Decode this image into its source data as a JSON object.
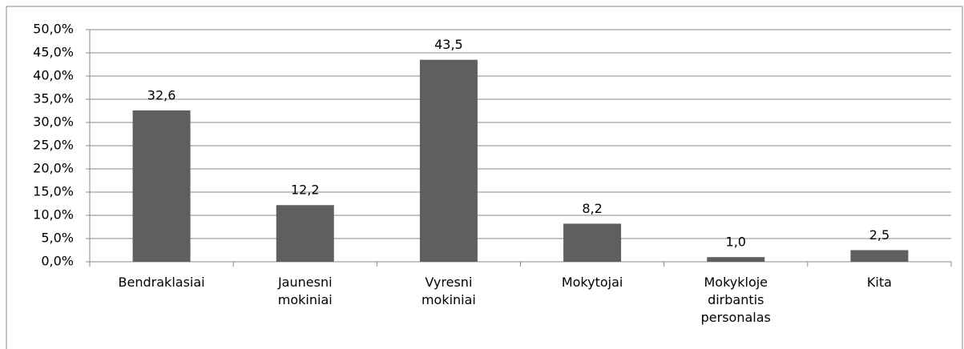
{
  "chart_data": {
    "type": "bar",
    "categories": [
      "Bendraklasiai",
      "Jaunesni\nmokiniai",
      "Vyresni\nmokiniai",
      "Mokytojai",
      "Mokykloje\ndirbantis\npersonalas",
      "Kita"
    ],
    "values": [
      32.6,
      12.2,
      43.5,
      8.2,
      1.0,
      2.5
    ],
    "value_labels": [
      "32,6",
      "12,2",
      "43,5",
      "8,2",
      "1,0",
      "2,5"
    ],
    "color": "#5f5f5f",
    "ylim": [
      0,
      50
    ],
    "yticks": [
      {
        "value": 0,
        "label": "0,0%"
      },
      {
        "value": 5,
        "label": "5,0%"
      },
      {
        "value": 10,
        "label": "10,0%"
      },
      {
        "value": 15,
        "label": "15,0%"
      },
      {
        "value": 20,
        "label": "20,0%"
      },
      {
        "value": 25,
        "label": "25,0%"
      },
      {
        "value": 30,
        "label": "30,0%"
      },
      {
        "value": 35,
        "label": "35,0%"
      },
      {
        "value": 40,
        "label": "40,0%"
      },
      {
        "value": 45,
        "label": "45,0%"
      },
      {
        "value": 50,
        "label": "50,0%"
      }
    ],
    "grid": true
  }
}
